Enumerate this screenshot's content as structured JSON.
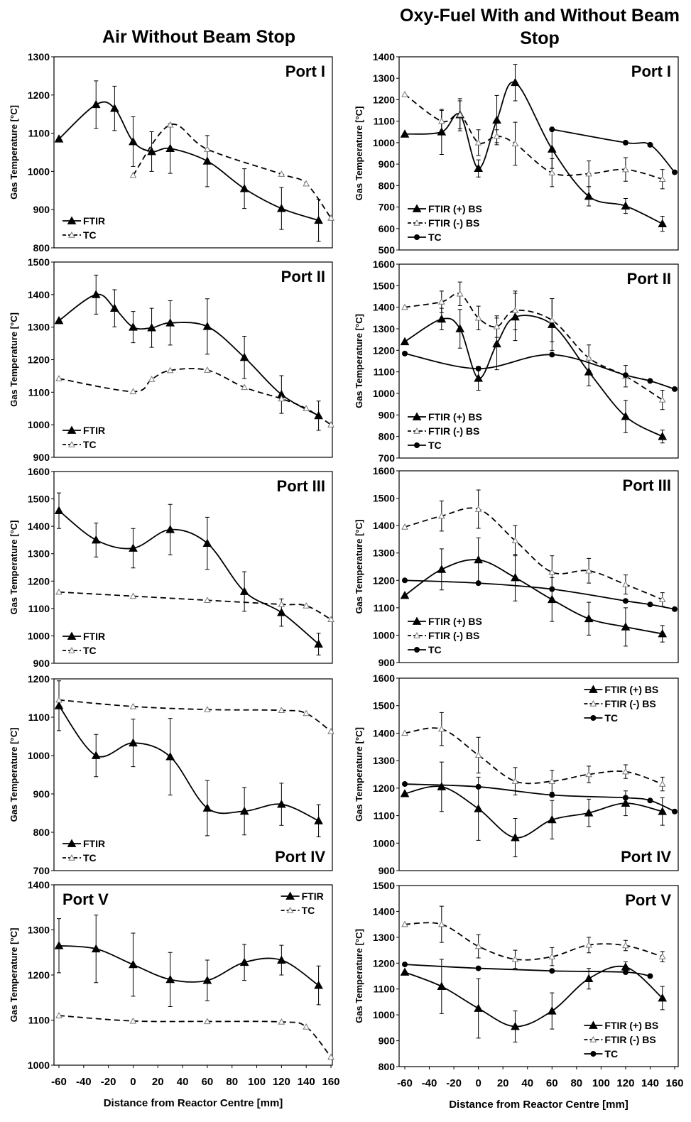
{
  "column_titles": [
    "Air Without Beam Stop",
    "Oxy-Fuel With and Without Beam Stop"
  ],
  "chart_data": [
    {
      "type": "line",
      "title": "Port I",
      "title_loc": "upper right",
      "legend": "lower left",
      "ylabel": "Gas Temperature [°C]",
      "xlim": [
        -60,
        160
      ],
      "ylim": [
        800,
        1300
      ],
      "yticks": [
        800,
        900,
        1000,
        1100,
        1200,
        1300
      ],
      "series": [
        {
          "name": "FTIR",
          "color": "#000000",
          "style": "solid",
          "marker": "filled-triangle",
          "x": [
            -60,
            -30,
            -15,
            0,
            15,
            30,
            60,
            90,
            120,
            150
          ],
          "values": [
            1085,
            1175,
            1165,
            1078,
            1052,
            1060,
            1027,
            955,
            903,
            872
          ],
          "errors": [
            null,
            62,
            58,
            65,
            52,
            65,
            67,
            52,
            55,
            55
          ]
        },
        {
          "name": "TC",
          "color": "#000000",
          "style": "dashed",
          "marker": "open-triangle",
          "x": [
            0,
            30,
            60,
            120,
            140,
            160
          ],
          "values": [
            990,
            1122,
            1058,
            993,
            968,
            878
          ]
        }
      ]
    },
    {
      "type": "line",
      "title": "Port II",
      "title_loc": "upper right",
      "legend": "lower left",
      "ylabel": "Gas Temperature [°C]",
      "xlim": [
        -60,
        160
      ],
      "ylim": [
        900,
        1500
      ],
      "yticks": [
        900,
        1000,
        1100,
        1200,
        1300,
        1400,
        1500
      ],
      "series": [
        {
          "name": "FTIR",
          "color": "#000000",
          "style": "solid",
          "marker": "filled-triangle",
          "x": [
            -60,
            -30,
            -15,
            0,
            15,
            30,
            60,
            90,
            120,
            150
          ],
          "values": [
            1320,
            1400,
            1358,
            1300,
            1298,
            1313,
            1302,
            1207,
            1093,
            1028
          ],
          "errors": [
            null,
            60,
            57,
            48,
            60,
            68,
            85,
            65,
            58,
            45
          ]
        },
        {
          "name": "TC",
          "color": "#000000",
          "style": "dashed",
          "marker": "open-triangle",
          "x": [
            -60,
            0,
            15,
            30,
            60,
            90,
            120,
            140,
            160
          ],
          "values": [
            1142,
            1102,
            1140,
            1167,
            1168,
            1115,
            1080,
            1050,
            1000
          ]
        }
      ]
    },
    {
      "type": "line",
      "title": "Port III",
      "title_loc": "upper right",
      "legend": "lower left",
      "ylabel": "Gas Temperature [°C]",
      "xlim": [
        -60,
        160
      ],
      "ylim": [
        900,
        1600
      ],
      "yticks": [
        900,
        1000,
        1100,
        1200,
        1300,
        1400,
        1500,
        1600
      ],
      "series": [
        {
          "name": "FTIR",
          "color": "#000000",
          "style": "solid",
          "marker": "filled-triangle",
          "x": [
            -60,
            -30,
            0,
            30,
            60,
            90,
            120,
            150
          ],
          "values": [
            1457,
            1350,
            1320,
            1388,
            1338,
            1162,
            1085,
            970
          ],
          "errors": [
            65,
            62,
            72,
            92,
            95,
            72,
            50,
            40
          ]
        },
        {
          "name": "TC",
          "color": "#000000",
          "style": "dashed",
          "marker": "open-triangle",
          "x": [
            -60,
            0,
            60,
            120,
            140,
            160
          ],
          "values": [
            1160,
            1145,
            1130,
            1115,
            1110,
            1060
          ]
        }
      ]
    },
    {
      "type": "line",
      "title": "Port IV",
      "title_loc": "lower right",
      "legend": "lower left",
      "ylabel": "Gas Temperature [°C]",
      "xlim": [
        -60,
        160
      ],
      "ylim": [
        700,
        1200
      ],
      "yticks": [
        700,
        800,
        900,
        1000,
        1100,
        1200
      ],
      "series": [
        {
          "name": "FTIR",
          "color": "#000000",
          "style": "solid",
          "marker": "filled-triangle",
          "x": [
            -60,
            -30,
            0,
            30,
            60,
            90,
            120,
            150
          ],
          "values": [
            1130,
            1000,
            1033,
            997,
            863,
            855,
            873,
            830
          ],
          "errors": [
            65,
            55,
            62,
            100,
            72,
            62,
            55,
            42
          ]
        },
        {
          "name": "TC",
          "color": "#000000",
          "style": "dashed",
          "marker": "open-triangle",
          "x": [
            -60,
            0,
            60,
            120,
            140,
            160
          ],
          "values": [
            1145,
            1128,
            1120,
            1118,
            1110,
            1063
          ]
        }
      ]
    },
    {
      "type": "line",
      "title": "Port V",
      "title_loc": "upper left",
      "legend": "upper right",
      "ylabel": "Gas Temperature [°C]",
      "xlabel": "Distance from Reactor Centre [mm]",
      "xlim": [
        -60,
        160
      ],
      "xticks": [
        -60,
        -40,
        -20,
        0,
        20,
        40,
        60,
        80,
        100,
        120,
        140,
        160
      ],
      "ylim": [
        1000,
        1400
      ],
      "yticks": [
        1000,
        1100,
        1200,
        1300,
        1400
      ],
      "series": [
        {
          "name": "FTIR",
          "color": "#000000",
          "style": "solid",
          "marker": "filled-triangle",
          "x": [
            -60,
            -30,
            0,
            30,
            60,
            90,
            120,
            150
          ],
          "values": [
            1265,
            1258,
            1223,
            1190,
            1188,
            1228,
            1233,
            1177
          ],
          "errors": [
            60,
            75,
            70,
            60,
            45,
            40,
            33,
            43
          ]
        },
        {
          "name": "TC",
          "color": "#000000",
          "style": "dashed",
          "marker": "open-triangle",
          "x": [
            -60,
            0,
            60,
            120,
            140,
            160
          ],
          "values": [
            1110,
            1098,
            1097,
            1096,
            1085,
            1018
          ]
        }
      ]
    },
    {
      "type": "line",
      "title": "Port I",
      "title_loc": "upper right",
      "legend": "lower left",
      "ylabel": "Gas Temperature [°C]",
      "xlim": [
        -60,
        160
      ],
      "ylim": [
        500,
        1400
      ],
      "yticks": [
        500,
        600,
        700,
        800,
        900,
        1000,
        1100,
        1200,
        1300,
        1400
      ],
      "series": [
        {
          "name": "FTIR (+) BS",
          "color": "#000000",
          "style": "solid",
          "marker": "filled-triangle",
          "x": [
            -60,
            -30,
            -15,
            0,
            15,
            30,
            60,
            90,
            120,
            150
          ],
          "values": [
            1040,
            1050,
            1130,
            880,
            1105,
            1280,
            970,
            750,
            705,
            622
          ],
          "errors": [
            null,
            105,
            75,
            40,
            115,
            85,
            90,
            45,
            35,
            35
          ]
        },
        {
          "name": "FTIR (-) BS",
          "color": "#000000",
          "style": "dashed",
          "marker": "open-triangle",
          "x": [
            -60,
            -30,
            -15,
            0,
            15,
            30,
            60,
            90,
            120,
            150
          ],
          "values": [
            1225,
            1100,
            1130,
            1000,
            1030,
            995,
            860,
            855,
            875,
            830
          ],
          "errors": [
            null,
            50,
            65,
            60,
            30,
            100,
            65,
            60,
            55,
            45
          ]
        },
        {
          "name": "TC",
          "color": "#000000",
          "style": "solid",
          "marker": "filled-circle",
          "x": [
            60,
            120,
            140,
            160
          ],
          "values": [
            1062,
            1000,
            990,
            862
          ]
        }
      ]
    },
    {
      "type": "line",
      "title": "Port II",
      "title_loc": "upper right",
      "legend": "lower left",
      "ylabel": "Gas Temperature [°C]",
      "xlim": [
        -60,
        160
      ],
      "ylim": [
        700,
        1600
      ],
      "yticks": [
        700,
        800,
        900,
        1000,
        1100,
        1200,
        1300,
        1400,
        1500,
        1600
      ],
      "series": [
        {
          "name": "FTIR (+) BS",
          "color": "#000000",
          "style": "solid",
          "marker": "filled-triangle",
          "x": [
            -60,
            -30,
            -15,
            0,
            15,
            30,
            60,
            90,
            120,
            150
          ],
          "values": [
            1240,
            1345,
            1300,
            1070,
            1230,
            1355,
            1320,
            1100,
            893,
            800
          ],
          "errors": [
            null,
            50,
            90,
            55,
            120,
            110,
            120,
            65,
            75,
            30
          ]
        },
        {
          "name": "FTIR (-) BS",
          "color": "#000000",
          "style": "dashed",
          "marker": "open-triangle",
          "x": [
            -60,
            -30,
            -15,
            0,
            15,
            30,
            60,
            90,
            120,
            150
          ],
          "values": [
            1400,
            1425,
            1462,
            1350,
            1310,
            1385,
            1340,
            1165,
            1080,
            970
          ],
          "errors": [
            null,
            50,
            55,
            55,
            50,
            90,
            100,
            60,
            50,
            45
          ]
        },
        {
          "name": "TC",
          "color": "#000000",
          "style": "solid",
          "marker": "filled-circle",
          "x": [
            -60,
            0,
            60,
            120,
            140,
            160
          ],
          "values": [
            1185,
            1115,
            1180,
            1085,
            1058,
            1020
          ]
        }
      ]
    },
    {
      "type": "line",
      "title": "Port III",
      "title_loc": "upper right",
      "legend": "lower left",
      "ylabel": "Gas Temperature [°C]",
      "xlim": [
        -60,
        160
      ],
      "ylim": [
        900,
        1600
      ],
      "yticks": [
        900,
        1000,
        1100,
        1200,
        1300,
        1400,
        1500,
        1600
      ],
      "series": [
        {
          "name": "FTIR (+) BS",
          "color": "#000000",
          "style": "solid",
          "marker": "filled-triangle",
          "x": [
            -60,
            -30,
            0,
            30,
            60,
            90,
            120,
            150
          ],
          "values": [
            1145,
            1240,
            1275,
            1210,
            1130,
            1060,
            1030,
            1005
          ],
          "errors": [
            null,
            75,
            80,
            85,
            80,
            60,
            70,
            30
          ]
        },
        {
          "name": "FTIR (-) BS",
          "color": "#000000",
          "style": "dashed",
          "marker": "open-triangle",
          "x": [
            -60,
            -30,
            0,
            30,
            60,
            90,
            120,
            150
          ],
          "values": [
            1395,
            1435,
            1460,
            1345,
            1230,
            1235,
            1185,
            1130
          ],
          "errors": [
            null,
            55,
            70,
            55,
            60,
            45,
            35,
            25
          ]
        },
        {
          "name": "TC",
          "color": "#000000",
          "style": "solid",
          "marker": "filled-circle",
          "x": [
            -60,
            0,
            60,
            120,
            140,
            160
          ],
          "values": [
            1200,
            1190,
            1168,
            1125,
            1112,
            1095
          ]
        }
      ]
    },
    {
      "type": "line",
      "title": "Port IV",
      "title_loc": "lower right",
      "legend": "upper right",
      "ylabel": "Gas Temperature [°C]",
      "xlim": [
        -60,
        160
      ],
      "ylim": [
        900,
        1600
      ],
      "yticks": [
        900,
        1000,
        1100,
        1200,
        1300,
        1400,
        1500,
        1600
      ],
      "series": [
        {
          "name": "FTIR (+) BS",
          "color": "#000000",
          "style": "solid",
          "marker": "filled-triangle",
          "x": [
            -60,
            -30,
            0,
            30,
            60,
            90,
            120,
            150
          ],
          "values": [
            1180,
            1205,
            1125,
            1020,
            1085,
            1110,
            1145,
            1115
          ],
          "errors": [
            null,
            90,
            115,
            70,
            70,
            50,
            45,
            50
          ]
        },
        {
          "name": "FTIR (-) BS",
          "color": "#000000",
          "style": "dashed",
          "marker": "open-triangle",
          "x": [
            -60,
            -30,
            0,
            30,
            60,
            90,
            120,
            150
          ],
          "values": [
            1400,
            1415,
            1320,
            1225,
            1225,
            1250,
            1260,
            1215
          ],
          "errors": [
            null,
            60,
            65,
            50,
            40,
            30,
            25,
            25
          ]
        },
        {
          "name": "TC",
          "color": "#000000",
          "style": "solid",
          "marker": "filled-circle",
          "x": [
            -60,
            0,
            60,
            120,
            140,
            160
          ],
          "values": [
            1215,
            1205,
            1175,
            1165,
            1155,
            1115
          ]
        }
      ]
    },
    {
      "type": "line",
      "title": "Port V",
      "title_loc": "upper right",
      "legend": "lower right",
      "ylabel": "Gas Temperature [°C]",
      "xlabel": "Distance from Reactor Centre [mm]",
      "xlim": [
        -60,
        160
      ],
      "xticks": [
        -60,
        -40,
        -20,
        0,
        20,
        40,
        60,
        80,
        100,
        120,
        140,
        160
      ],
      "ylim": [
        800,
        1500
      ],
      "yticks": [
        800,
        900,
        1000,
        1100,
        1200,
        1300,
        1400,
        1500
      ],
      "series": [
        {
          "name": "FTIR (+) BS",
          "color": "#000000",
          "style": "solid",
          "marker": "filled-triangle",
          "x": [
            -60,
            -30,
            0,
            30,
            60,
            90,
            120,
            150
          ],
          "values": [
            1165,
            1110,
            1025,
            955,
            1015,
            1140,
            1185,
            1065
          ],
          "errors": [
            null,
            105,
            115,
            60,
            70,
            40,
            20,
            45
          ]
        },
        {
          "name": "FTIR (-) BS",
          "color": "#000000",
          "style": "dashed",
          "marker": "open-triangle",
          "x": [
            -60,
            -30,
            0,
            30,
            60,
            90,
            120,
            150
          ],
          "values": [
            1350,
            1350,
            1265,
            1215,
            1225,
            1270,
            1268,
            1225
          ],
          "errors": [
            null,
            70,
            45,
            35,
            35,
            30,
            20,
            20
          ]
        },
        {
          "name": "TC",
          "color": "#000000",
          "style": "solid",
          "marker": "filled-circle",
          "x": [
            -60,
            0,
            60,
            120,
            140
          ],
          "values": [
            1195,
            1180,
            1170,
            1165,
            1150
          ]
        }
      ]
    }
  ]
}
